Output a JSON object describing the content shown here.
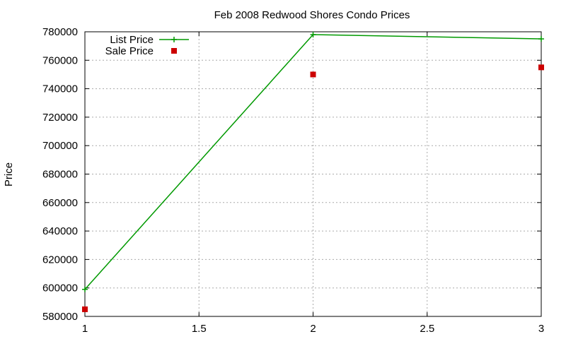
{
  "chart_data": {
    "type": "line",
    "title": "Feb 2008 Redwood Shores Condo Prices",
    "xlabel": "",
    "ylabel": "Price",
    "xlim": [
      1,
      3
    ],
    "ylim": [
      580000,
      780000
    ],
    "x_ticks": [
      "1",
      "1.5",
      "2",
      "2.5",
      "3"
    ],
    "y_ticks": [
      "580000",
      "600000",
      "620000",
      "640000",
      "660000",
      "680000",
      "700000",
      "720000",
      "740000",
      "760000",
      "780000"
    ],
    "x_tick_values": [
      1,
      1.5,
      2,
      2.5,
      3
    ],
    "y_tick_values": [
      580000,
      600000,
      620000,
      640000,
      660000,
      680000,
      700000,
      720000,
      740000,
      760000,
      780000
    ],
    "grid": true,
    "legend_position": "top-left",
    "series": [
      {
        "name": "List Price",
        "style": "linespoints",
        "marker": "plus",
        "color": "#009900",
        "x": [
          1,
          2,
          3
        ],
        "y": [
          599000,
          778000,
          775000
        ]
      },
      {
        "name": "Sale Price",
        "style": "points",
        "marker": "square",
        "color": "#cc0000",
        "x": [
          1,
          2,
          3
        ],
        "y": [
          585000,
          750000,
          755000
        ]
      }
    ]
  }
}
